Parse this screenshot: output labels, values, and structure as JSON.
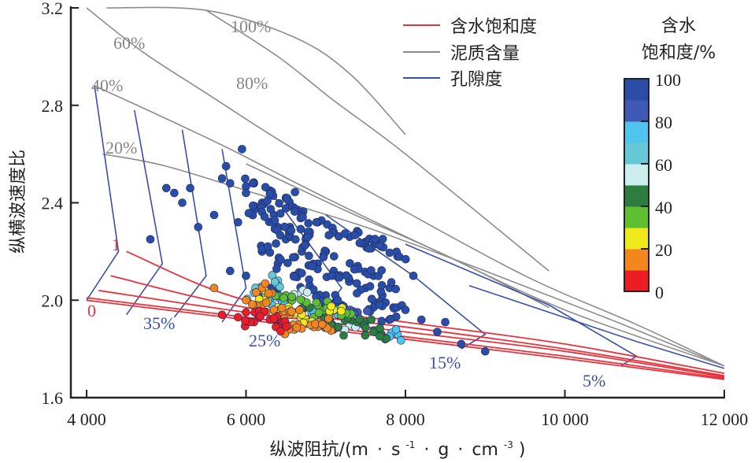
{
  "chart_data": {
    "type": "scatter",
    "title": "",
    "xlabel": "纵波阻抗/(m·s⁻¹·g·cm⁻³)",
    "xlabel_parts": {
      "main": "纵波阻抗/(m",
      "dot1": "·",
      "s": "s",
      "sup1": "-1",
      "dot2": "·",
      "g": "g",
      "dot3": "·",
      "cm": "cm",
      "sup2": "-3",
      "close": ")"
    },
    "ylabel": "纵横波速度比",
    "xlim": [
      4000,
      12000
    ],
    "ylim": [
      1.6,
      3.2
    ],
    "xticks": [
      4000,
      6000,
      8000,
      10000,
      12000
    ],
    "xtick_labels": [
      "4 000",
      "6 000",
      "8 000",
      "10 000",
      "12 000"
    ],
    "yticks": [
      1.6,
      2.0,
      2.4,
      2.8,
      3.2
    ],
    "ytick_labels": [
      "1.6",
      "2.0",
      "2.4",
      "2.8",
      "3.2"
    ],
    "grid": false,
    "legend": {
      "placement": "top-right",
      "entries": [
        {
          "label": "含水饱和度",
          "color": "#e8323c"
        },
        {
          "label": "泥质含量",
          "color": "#8c8c8c"
        },
        {
          "label": "孔隙度",
          "color": "#3a4fa8"
        }
      ]
    },
    "colorbar": {
      "title_line1": "含水",
      "title_line2": "饱和度/%",
      "range": [
        0,
        100
      ],
      "tick_labels": [
        "100",
        "80",
        "60",
        "40",
        "20",
        "0"
      ],
      "colors": [
        "#ee1c24",
        "#f4861e",
        "#f0ea1c",
        "#5fbf30",
        "#2c7d3f",
        "#cdeded",
        "#66c7d6",
        "#4ec4ef",
        "#3f59b5",
        "#2a4ea8"
      ]
    },
    "annotations": {
      "shale": [
        "100%",
        "80%",
        "60%",
        "40%",
        "20%"
      ],
      "porosity": [
        "35%",
        "25%",
        "15%",
        "5%"
      ],
      "saturation": [
        "1",
        "0"
      ]
    },
    "series": [
      {
        "name": "泥质含量 model lines",
        "color": "#8c8c8c",
        "lines": [
          {
            "label": "100%",
            "points": [
              [
                4250,
                3.2
              ],
              [
                5500,
                3.19
              ],
              [
                6600,
                3.08
              ],
              [
                7300,
                2.93
              ],
              [
                8000,
                2.68
              ]
            ]
          },
          {
            "label": "80%",
            "points": [
              [
                5500,
                3.19
              ],
              [
                6400,
                3.0
              ],
              [
                7100,
                2.82
              ],
              [
                8000,
                2.6
              ],
              [
                9800,
                2.12
              ]
            ]
          },
          {
            "label": "60%",
            "points": [
              [
                4000,
                3.2
              ],
              [
                4700,
                3.02
              ],
              [
                5500,
                2.85
              ],
              [
                6600,
                2.62
              ],
              [
                7800,
                2.4
              ],
              [
                9500,
                2.1
              ],
              [
                10900,
                1.9
              ],
              [
                12000,
                1.73
              ]
            ]
          },
          {
            "label": "40%",
            "points": [
              [
                4100,
                2.88
              ],
              [
                4900,
                2.76
              ],
              [
                5800,
                2.62
              ],
              [
                7000,
                2.42
              ],
              [
                8400,
                2.2
              ],
              [
                10000,
                1.96
              ],
              [
                12000,
                1.73
              ]
            ]
          },
          {
            "label": "20%",
            "points": [
              [
                4200,
                2.6
              ],
              [
                5000,
                2.55
              ],
              [
                6200,
                2.43
              ],
              [
                7500,
                2.3
              ],
              [
                9000,
                2.12
              ],
              [
                10500,
                1.93
              ],
              [
                12000,
                1.73
              ]
            ]
          },
          {
            "label": "",
            "points": [
              [
                6000,
                2.56
              ],
              [
                7300,
                2.36
              ],
              [
                8600,
                2.17
              ],
              [
                9800,
                1.97
              ]
            ]
          }
        ]
      },
      {
        "name": "孔隙度 model lines",
        "color": "#3a4fa8",
        "lines": [
          {
            "label": "35%",
            "points": [
              [
                4100,
                2.88
              ],
              [
                4400,
                2.2
              ],
              [
                4000,
                2.0
              ]
            ]
          },
          {
            "label": "",
            "points": [
              [
                4600,
                2.78
              ],
              [
                4950,
                2.15
              ],
              [
                4500,
                1.94
              ]
            ]
          },
          {
            "label": "",
            "points": [
              [
                5200,
                2.7
              ],
              [
                5500,
                2.1
              ],
              [
                5100,
                1.93
              ]
            ]
          },
          {
            "label": "",
            "points": [
              [
                5700,
                2.62
              ],
              [
                6000,
                2.05
              ],
              [
                5700,
                1.91
              ]
            ]
          },
          {
            "label": "25%",
            "points": [
              [
                6300,
                2.45
              ],
              [
                7200,
                2.05
              ],
              [
                6800,
                1.88
              ]
            ]
          },
          {
            "label": "15%",
            "points": [
              [
                7000,
                2.35
              ],
              [
                8100,
                2.1
              ],
              [
                9000,
                1.86
              ],
              [
                8700,
                1.8
              ]
            ]
          },
          {
            "label": "5%",
            "points": [
              [
                8000,
                2.23
              ],
              [
                9800,
                1.98
              ],
              [
                10900,
                1.77
              ],
              [
                10700,
                1.73
              ]
            ]
          },
          {
            "label": "",
            "points": [
              [
                8800,
                2.06
              ],
              [
                10900,
                1.83
              ],
              [
                12000,
                1.72
              ]
            ]
          }
        ]
      },
      {
        "name": "含水饱和度 model lines",
        "color": "#e8323c",
        "lines": [
          {
            "label": "1",
            "points": [
              [
                4500,
                2.2
              ],
              [
                6000,
                2.0
              ],
              [
                8000,
                1.91
              ],
              [
                10000,
                1.82
              ],
              [
                12000,
                1.7
              ]
            ]
          },
          {
            "label": "",
            "points": [
              [
                4300,
                2.1
              ],
              [
                6000,
                1.97
              ],
              [
                8000,
                1.89
              ],
              [
                10000,
                1.8
              ],
              [
                12000,
                1.69
              ]
            ]
          },
          {
            "label": "",
            "points": [
              [
                4150,
                2.04
              ],
              [
                6000,
                1.95
              ],
              [
                8000,
                1.87
              ],
              [
                10000,
                1.79
              ],
              [
                12000,
                1.685
              ]
            ]
          },
          {
            "label": "",
            "points": [
              [
                4000,
                2.01
              ],
              [
                6000,
                1.93
              ],
              [
                8000,
                1.85
              ],
              [
                10000,
                1.77
              ],
              [
                12000,
                1.68
              ]
            ]
          },
          {
            "label": "0",
            "points": [
              [
                4000,
                2.0
              ],
              [
                6000,
                1.92
              ],
              [
                8000,
                1.84
              ],
              [
                10000,
                1.76
              ],
              [
                12000,
                1.675
              ]
            ]
          }
        ]
      }
    ],
    "scatter_points": [
      [
        5000,
        2.46,
        100
      ],
      [
        5100,
        2.44,
        100
      ],
      [
        5300,
        2.46,
        100
      ],
      [
        5200,
        2.4,
        100
      ],
      [
        4800,
        2.25,
        100
      ],
      [
        5400,
        2.3,
        100
      ],
      [
        5600,
        2.35,
        100
      ],
      [
        5900,
        2.32,
        100
      ],
      [
        5950,
        2.62,
        100
      ],
      [
        5750,
        2.55,
        100
      ],
      [
        5700,
        2.5,
        100
      ],
      [
        5800,
        2.48,
        100
      ],
      [
        6100,
        2.48,
        100
      ],
      [
        6300,
        2.45,
        100
      ],
      [
        6500,
        2.42,
        100
      ],
      [
        6600,
        2.38,
        100
      ],
      [
        6700,
        2.35,
        100
      ],
      [
        6400,
        2.3,
        100
      ],
      [
        6200,
        2.4,
        100
      ],
      [
        6000,
        2.44,
        100
      ],
      [
        6900,
        2.32,
        100
      ],
      [
        7100,
        2.28,
        100
      ],
      [
        7300,
        2.26,
        100
      ],
      [
        7500,
        2.24,
        100
      ],
      [
        7700,
        2.22,
        100
      ],
      [
        7900,
        2.18,
        100
      ],
      [
        8100,
        2.1,
        100
      ],
      [
        6500,
        2.25,
        100
      ],
      [
        6700,
        2.2,
        100
      ],
      [
        6900,
        2.15,
        100
      ],
      [
        7100,
        2.12,
        100
      ],
      [
        7300,
        2.08,
        100
      ],
      [
        7500,
        2.05,
        100
      ],
      [
        7700,
        2.0,
        100
      ],
      [
        7850,
        1.97,
        100
      ],
      [
        8500,
        1.91,
        100
      ],
      [
        6200,
        2.2,
        100
      ],
      [
        6400,
        2.15,
        100
      ],
      [
        6600,
        2.1,
        100
      ],
      [
        6800,
        2.06,
        100
      ],
      [
        7000,
        2.02,
        100
      ],
      [
        7200,
        1.98,
        100
      ],
      [
        6300,
        2.05,
        90
      ],
      [
        6000,
        2.1,
        100
      ],
      [
        5800,
        2.12,
        100
      ],
      [
        6800,
        2.28,
        100
      ],
      [
        7000,
        2.2,
        100
      ],
      [
        7400,
        2.14,
        100
      ],
      [
        7600,
        2.1,
        100
      ],
      [
        7800,
        2.05,
        100
      ],
      [
        7600,
        1.97,
        90
      ],
      [
        7400,
        1.95,
        80
      ],
      [
        8000,
        1.96,
        100
      ],
      [
        8200,
        1.92,
        100
      ],
      [
        8700,
        1.82,
        100
      ],
      [
        8400,
        1.87,
        100
      ],
      [
        9000,
        1.79,
        100
      ],
      [
        7800,
        1.92,
        95
      ],
      [
        7650,
        2.23,
        100
      ],
      [
        6100,
        2.37,
        100
      ],
      [
        6350,
        2.35,
        100
      ],
      [
        6550,
        2.3,
        100
      ],
      [
        6750,
        2.25,
        100
      ],
      [
        6300,
        2.0,
        70
      ],
      [
        6100,
        2.03,
        65
      ],
      [
        6450,
        1.99,
        75
      ],
      [
        6950,
        1.96,
        70
      ],
      [
        7150,
        1.94,
        65
      ],
      [
        6800,
        1.97,
        45
      ],
      [
        7000,
        1.95,
        40
      ],
      [
        7250,
        1.93,
        45
      ],
      [
        7500,
        1.91,
        45
      ],
      [
        6500,
        2.02,
        35
      ],
      [
        6700,
        2.0,
        30
      ],
      [
        6900,
        1.98,
        35
      ],
      [
        7100,
        1.96,
        25
      ],
      [
        7300,
        1.94,
        35
      ],
      [
        6400,
        1.97,
        25
      ],
      [
        6600,
        1.95,
        25
      ],
      [
        6850,
        1.93,
        30
      ],
      [
        7050,
        1.92,
        45
      ],
      [
        6200,
        1.98,
        15
      ],
      [
        6350,
        1.96,
        15
      ],
      [
        6550,
        1.94,
        15
      ],
      [
        6750,
        1.92,
        20
      ],
      [
        6950,
        1.9,
        15
      ],
      [
        6150,
        1.94,
        5
      ],
      [
        6300,
        1.92,
        5
      ],
      [
        6450,
        1.91,
        5
      ],
      [
        6650,
        1.9,
        10
      ],
      [
        6000,
        1.95,
        5
      ],
      [
        5900,
        1.93,
        5
      ],
      [
        5700,
        1.94,
        5
      ],
      [
        6100,
        1.91,
        5
      ],
      [
        6400,
        1.89,
        5
      ],
      [
        6600,
        1.88,
        10
      ],
      [
        6850,
        1.89,
        12
      ],
      [
        7100,
        1.88,
        40
      ],
      [
        7300,
        1.9,
        55
      ],
      [
        7600,
        1.87,
        40
      ],
      [
        7700,
        1.86,
        45
      ],
      [
        7900,
        1.86,
        70
      ],
      [
        6700,
        2.04,
        55
      ],
      [
        6400,
        2.08,
        60
      ],
      [
        5600,
        2.05,
        15
      ],
      [
        6200,
        2.05,
        18
      ],
      [
        6000,
        2.0,
        15
      ],
      [
        6250,
        2.02,
        25
      ]
    ]
  }
}
